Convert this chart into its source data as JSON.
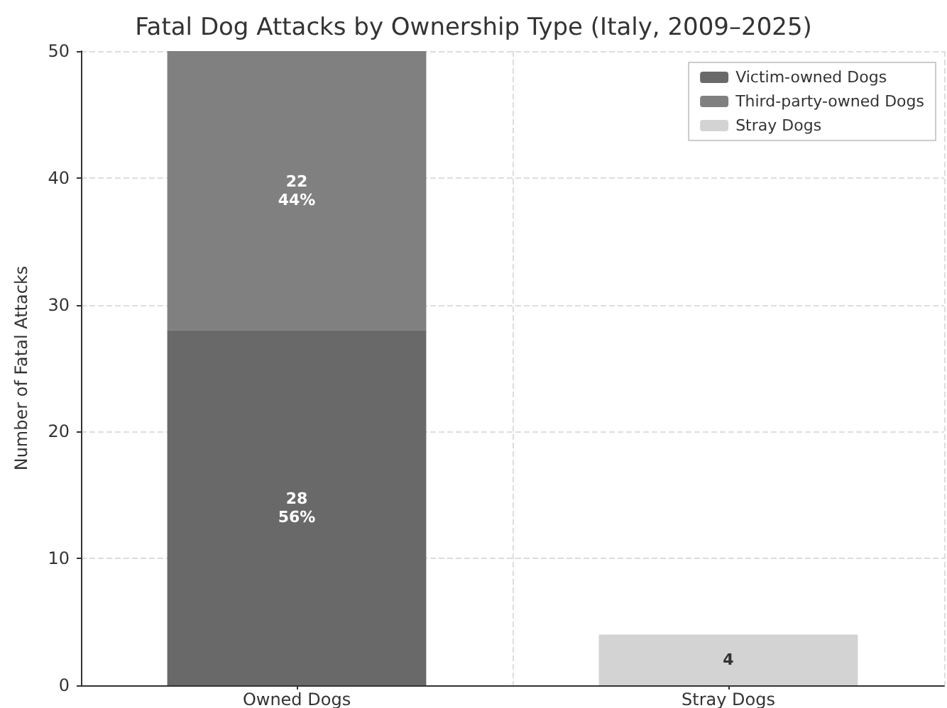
{
  "chart_data": {
    "type": "bar",
    "title": "Fatal Dog Attacks by Ownership Type (Italy, 2009–2025)",
    "ylabel": "Number of Fatal Attacks",
    "categories": [
      "Owned Dogs",
      "Stray Dogs"
    ],
    "series": [
      {
        "name": "Victim-owned Dogs",
        "color": "#696969",
        "values": [
          28,
          null
        ],
        "value_labels": [
          "28\n56%",
          null
        ]
      },
      {
        "name": "Third-party-owned Dogs",
        "color": "#808080",
        "values": [
          22,
          null
        ],
        "value_labels": [
          "22\n44%",
          null
        ]
      },
      {
        "name": "Stray Dogs",
        "color": "#d3d3d3",
        "values": [
          null,
          4
        ],
        "value_labels": [
          null,
          "4"
        ]
      }
    ],
    "stacked": true,
    "ylim": [
      0,
      50
    ],
    "yticks": [
      0,
      10,
      20,
      30,
      40,
      50
    ],
    "grid": true,
    "legend": "top right"
  }
}
